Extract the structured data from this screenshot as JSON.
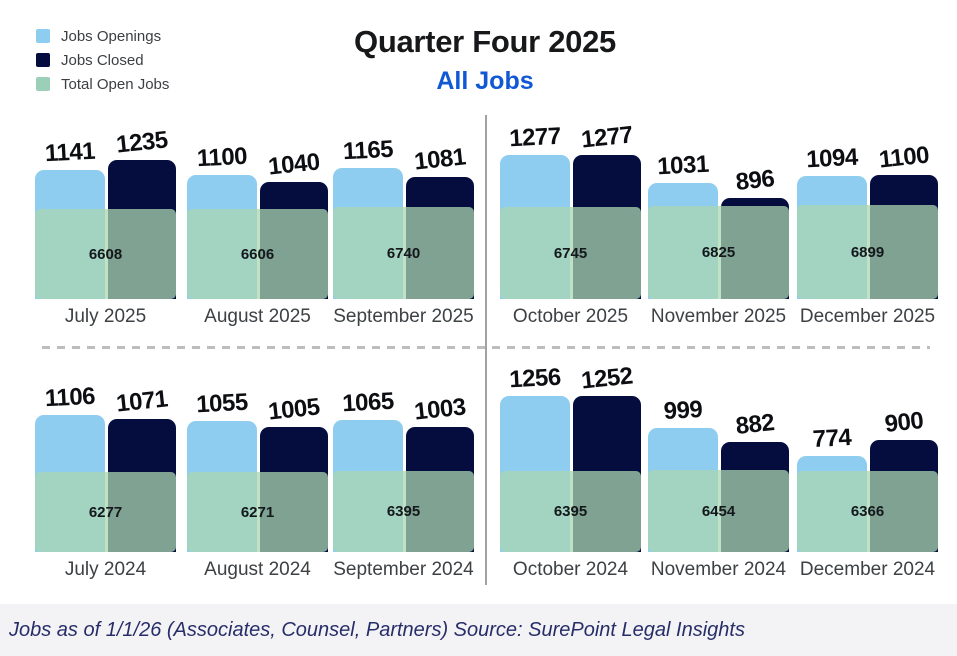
{
  "header": {
    "title": "Quarter Four 2025",
    "subtitle": "All Jobs"
  },
  "legend": {
    "items": [
      {
        "label": "Jobs Openings",
        "color": "#8ECDF0"
      },
      {
        "label": "Jobs Closed",
        "color": "#040D3E"
      },
      {
        "label": "Total Open Jobs",
        "color": "#9CCFB8"
      }
    ]
  },
  "caption": {
    "text": "Jobs as of 1/1/26 (Associates, Counsel, Partners) Source: SurePoint Legal Insights"
  },
  "chart_data": {
    "type": "bar",
    "title": "Quarter Four 2025",
    "subtitle": "All Jobs",
    "legend": [
      "Jobs Openings",
      "Jobs Closed",
      "Total Open Jobs"
    ],
    "legend_position": "top-left",
    "grid": false,
    "colors": {
      "jobs_openings": "#8ECDF0",
      "jobs_closed": "#040D3E",
      "total_open_jobs": "rgba(170,214,177,0.74)"
    },
    "rows": [
      {
        "categories": [
          "July 2025",
          "August 2025",
          "September 2025",
          "October 2025",
          "November 2025",
          "December 2025"
        ],
        "series": [
          {
            "name": "Jobs Openings",
            "values": [
              1141,
              1100,
              1165,
              1277,
              1031,
              1094
            ]
          },
          {
            "name": "Jobs Closed",
            "values": [
              1235,
              1040,
              1081,
              1277,
              896,
              1100
            ]
          },
          {
            "name": "Total Open Jobs",
            "values": [
              6608,
              6606,
              6740,
              6745,
              6825,
              6899
            ]
          }
        ]
      },
      {
        "categories": [
          "July 2024",
          "August 2024",
          "September 2024",
          "October 2024",
          "November 2024",
          "December 2024"
        ],
        "series": [
          {
            "name": "Jobs Openings",
            "values": [
              1106,
              1055,
              1065,
              1256,
              999,
              774
            ]
          },
          {
            "name": "Jobs Closed",
            "values": [
              1071,
              1005,
              1003,
              1252,
              882,
              900
            ]
          },
          {
            "name": "Total Open Jobs",
            "values": [
              6277,
              6271,
              6395,
              6395,
              6454,
              6366
            ]
          }
        ]
      }
    ]
  }
}
